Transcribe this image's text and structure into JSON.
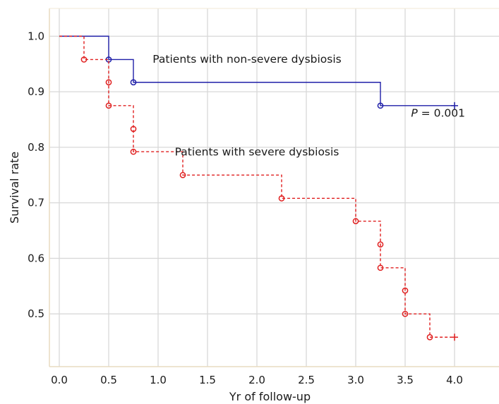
{
  "chart_data": {
    "type": "line",
    "subtype": "kaplan-meier",
    "title": "",
    "xlabel": "Yr of follow-up",
    "ylabel": "Survival rate",
    "xlim": [
      -0.1,
      4.45
    ],
    "ylim": [
      0.405,
      1.05
    ],
    "xticks": [
      0.0,
      0.5,
      1.0,
      1.5,
      2.0,
      2.5,
      3.0,
      3.5,
      4.0
    ],
    "xtick_labels": [
      "0.0",
      "0.5",
      "1.0",
      "1.5",
      "2.0",
      "2.5",
      "3.0",
      "3.5",
      "4.0"
    ],
    "yticks": [
      0.5,
      0.6,
      0.7,
      0.8,
      0.9,
      1.0
    ],
    "ytick_labels": [
      "0.5",
      "0.6",
      "0.7",
      "0.8",
      "0.9",
      "1.0"
    ],
    "grid": true,
    "series": [
      {
        "label": "Patients with non-severe dysbiosis",
        "color": "#1f1fa8",
        "dash": "solid",
        "steps": [
          [
            0.0,
            1.0
          ],
          [
            0.5,
            0.958
          ],
          [
            0.75,
            0.917
          ],
          [
            3.25,
            0.875
          ]
        ],
        "end_x": 4.0,
        "events": [
          [
            0.5,
            0.958
          ],
          [
            0.75,
            0.917
          ],
          [
            3.25,
            0.875
          ]
        ],
        "censored": [
          [
            4.0,
            0.875
          ]
        ]
      },
      {
        "label": "Patients with severe dysbiosis",
        "color": "#e02020",
        "dash": "dashed",
        "steps": [
          [
            0.0,
            1.0
          ],
          [
            0.25,
            0.958
          ],
          [
            0.5,
            0.875
          ],
          [
            0.75,
            0.792
          ],
          [
            1.25,
            0.75
          ],
          [
            2.25,
            0.708
          ],
          [
            3.0,
            0.667
          ],
          [
            3.25,
            0.583
          ],
          [
            3.5,
            0.5
          ],
          [
            3.75,
            0.458
          ]
        ],
        "end_x": 4.0,
        "events": [
          [
            0.25,
            0.958
          ],
          [
            0.5,
            0.917
          ],
          [
            0.5,
            0.875
          ],
          [
            0.75,
            0.833
          ],
          [
            0.75,
            0.792
          ],
          [
            1.25,
            0.75
          ],
          [
            2.25,
            0.708
          ],
          [
            3.0,
            0.667
          ],
          [
            3.25,
            0.625
          ],
          [
            3.25,
            0.583
          ],
          [
            3.5,
            0.542
          ],
          [
            3.5,
            0.5
          ],
          [
            3.75,
            0.458
          ]
        ],
        "censored": [
          [
            4.0,
            0.458
          ]
        ]
      }
    ],
    "annotations": [
      {
        "name": "label-non-severe",
        "text": "Patients with non-severe dysbiosis",
        "x": 1.9,
        "y": 0.952
      },
      {
        "name": "label-severe",
        "text": "Patients with severe dysbiosis",
        "x": 2.0,
        "y": 0.785
      },
      {
        "name": "p-value",
        "italic": "P",
        "text": " = 0.001",
        "x": 3.56,
        "y": 0.855
      }
    ]
  }
}
